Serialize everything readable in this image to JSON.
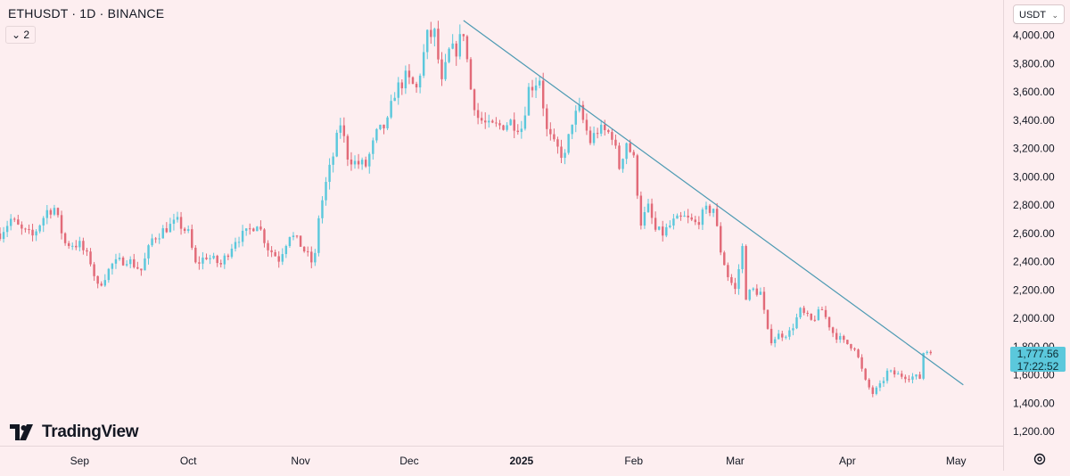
{
  "header": {
    "symbol_title": "ETHUSDT · 1D · BINANCE",
    "indicator_count": "2",
    "currency_selector": "USDT"
  },
  "brand": {
    "name": "TradingView"
  },
  "colors": {
    "up": "#5bc8dc",
    "down": "#e26a78",
    "background": "#fdeef0",
    "trendline": "#4d9ab3"
  },
  "price_label": {
    "price": "1,777.56",
    "countdown": "17:22:52"
  },
  "chart_data": {
    "type": "candlestick",
    "title": "ETHUSDT · 1D · BINANCE",
    "xlabel": "",
    "ylabel": "",
    "ylim": [
      1100,
      4250
    ],
    "y_ticks": [
      "4,000.00",
      "3,800.00",
      "3,600.00",
      "3,400.00",
      "3,200.00",
      "3,000.00",
      "2,800.00",
      "2,600.00",
      "2,400.00",
      "2,200.00",
      "2,000.00",
      "1,800.00",
      "1,600.00",
      "1,400.00",
      "1,200.00"
    ],
    "y_tick_values": [
      4000,
      3800,
      3600,
      3400,
      3200,
      3000,
      2800,
      2600,
      2400,
      2200,
      2000,
      1800,
      1600,
      1400,
      1200
    ],
    "x_ticks": [
      {
        "label": "Sep",
        "date": "2024-09-01",
        "bold": false
      },
      {
        "label": "Oct",
        "date": "2024-10-01",
        "bold": false
      },
      {
        "label": "Nov",
        "date": "2024-11-01",
        "bold": false
      },
      {
        "label": "Dec",
        "date": "2024-12-01",
        "bold": false
      },
      {
        "label": "2025",
        "date": "2025-01-01",
        "bold": true
      },
      {
        "label": "Feb",
        "date": "2025-02-01",
        "bold": false
      },
      {
        "label": "Mar",
        "date": "2025-03-01",
        "bold": false
      },
      {
        "label": "Apr",
        "date": "2025-04-01",
        "bold": false
      },
      {
        "label": "May",
        "date": "2025-05-01",
        "bold": false
      }
    ],
    "x_range": [
      "2024-08-10",
      "2025-05-14"
    ],
    "last_price": 1777.56,
    "trendline": {
      "start": {
        "date": "2024-12-16",
        "price": 4105
      },
      "end": {
        "date": "2025-05-03",
        "price": 1530
      }
    },
    "price_path": [
      [
        "2024-08-10",
        2600
      ],
      [
        "2024-08-13",
        2700
      ],
      [
        "2024-08-16",
        2620
      ],
      [
        "2024-08-19",
        2580
      ],
      [
        "2024-08-23",
        2760
      ],
      [
        "2024-08-25",
        2780
      ],
      [
        "2024-08-28",
        2530
      ],
      [
        "2024-09-01",
        2520
      ],
      [
        "2024-09-04",
        2400
      ],
      [
        "2024-09-06",
        2220
      ],
      [
        "2024-09-10",
        2380
      ],
      [
        "2024-09-14",
        2420
      ],
      [
        "2024-09-18",
        2340
      ],
      [
        "2024-09-21",
        2560
      ],
      [
        "2024-09-25",
        2640
      ],
      [
        "2024-09-28",
        2680
      ],
      [
        "2024-10-01",
        2600
      ],
      [
        "2024-10-03",
        2380
      ],
      [
        "2024-10-06",
        2440
      ],
      [
        "2024-10-10",
        2380
      ],
      [
        "2024-10-14",
        2560
      ],
      [
        "2024-10-17",
        2600
      ],
      [
        "2024-10-20",
        2680
      ],
      [
        "2024-10-23",
        2500
      ],
      [
        "2024-10-26",
        2420
      ],
      [
        "2024-10-29",
        2600
      ],
      [
        "2024-11-01",
        2520
      ],
      [
        "2024-11-04",
        2400
      ],
      [
        "2024-11-05",
        2440
      ],
      [
        "2024-11-06",
        2720
      ],
      [
        "2024-11-08",
        2950
      ],
      [
        "2024-11-10",
        3150
      ],
      [
        "2024-11-12",
        3380
      ],
      [
        "2024-11-14",
        3150
      ],
      [
        "2024-11-16",
        3100
      ],
      [
        "2024-11-19",
        3080
      ],
      [
        "2024-11-22",
        3300
      ],
      [
        "2024-11-25",
        3380
      ],
      [
        "2024-11-27",
        3600
      ],
      [
        "2024-11-30",
        3700
      ],
      [
        "2024-12-03",
        3620
      ],
      [
        "2024-12-06",
        3990
      ],
      [
        "2024-12-08",
        4010
      ],
      [
        "2024-12-10",
        3650
      ],
      [
        "2024-12-12",
        3880
      ],
      [
        "2024-12-14",
        3900
      ],
      [
        "2024-12-16",
        4030
      ],
      [
        "2024-12-18",
        3620
      ],
      [
        "2024-12-20",
        3420
      ],
      [
        "2024-12-23",
        3350
      ],
      [
        "2024-12-26",
        3360
      ],
      [
        "2024-12-29",
        3390
      ],
      [
        "2025-01-01",
        3350
      ],
      [
        "2025-01-03",
        3620
      ],
      [
        "2025-01-06",
        3700
      ],
      [
        "2025-01-08",
        3320
      ],
      [
        "2025-01-10",
        3220
      ],
      [
        "2025-01-13",
        3140
      ],
      [
        "2025-01-15",
        3400
      ],
      [
        "2025-01-17",
        3470
      ],
      [
        "2025-01-20",
        3250
      ],
      [
        "2025-01-22",
        3330
      ],
      [
        "2025-01-24",
        3320
      ],
      [
        "2025-01-26",
        3300
      ],
      [
        "2025-01-28",
        3070
      ],
      [
        "2025-01-30",
        3250
      ],
      [
        "2025-02-01",
        3120
      ],
      [
        "2025-02-03",
        2680
      ],
      [
        "2025-02-05",
        2780
      ],
      [
        "2025-02-07",
        2620
      ],
      [
        "2025-02-09",
        2600
      ],
      [
        "2025-02-12",
        2680
      ],
      [
        "2025-02-15",
        2710
      ],
      [
        "2025-02-18",
        2670
      ],
      [
        "2025-02-21",
        2760
      ],
      [
        "2025-02-23",
        2780
      ],
      [
        "2025-02-25",
        2480
      ],
      [
        "2025-02-27",
        2300
      ],
      [
        "2025-03-01",
        2200
      ],
      [
        "2025-03-03",
        2500
      ],
      [
        "2025-03-04",
        2160
      ],
      [
        "2025-03-06",
        2200
      ],
      [
        "2025-03-08",
        2180
      ],
      [
        "2025-03-10",
        1900
      ],
      [
        "2025-03-11",
        1850
      ],
      [
        "2025-03-13",
        1880
      ],
      [
        "2025-03-16",
        1900
      ],
      [
        "2025-03-19",
        2050
      ],
      [
        "2025-03-22",
        1980
      ],
      [
        "2025-03-25",
        2060
      ],
      [
        "2025-03-28",
        1900
      ],
      [
        "2025-03-31",
        1830
      ],
      [
        "2025-04-03",
        1800
      ],
      [
        "2025-04-06",
        1550
      ],
      [
        "2025-04-08",
        1470
      ],
      [
        "2025-04-10",
        1520
      ],
      [
        "2025-04-12",
        1620
      ],
      [
        "2025-04-15",
        1600
      ],
      [
        "2025-04-18",
        1590
      ],
      [
        "2025-04-21",
        1580
      ],
      [
        "2025-04-22",
        1760
      ],
      [
        "2025-04-24",
        1780
      ]
    ]
  }
}
